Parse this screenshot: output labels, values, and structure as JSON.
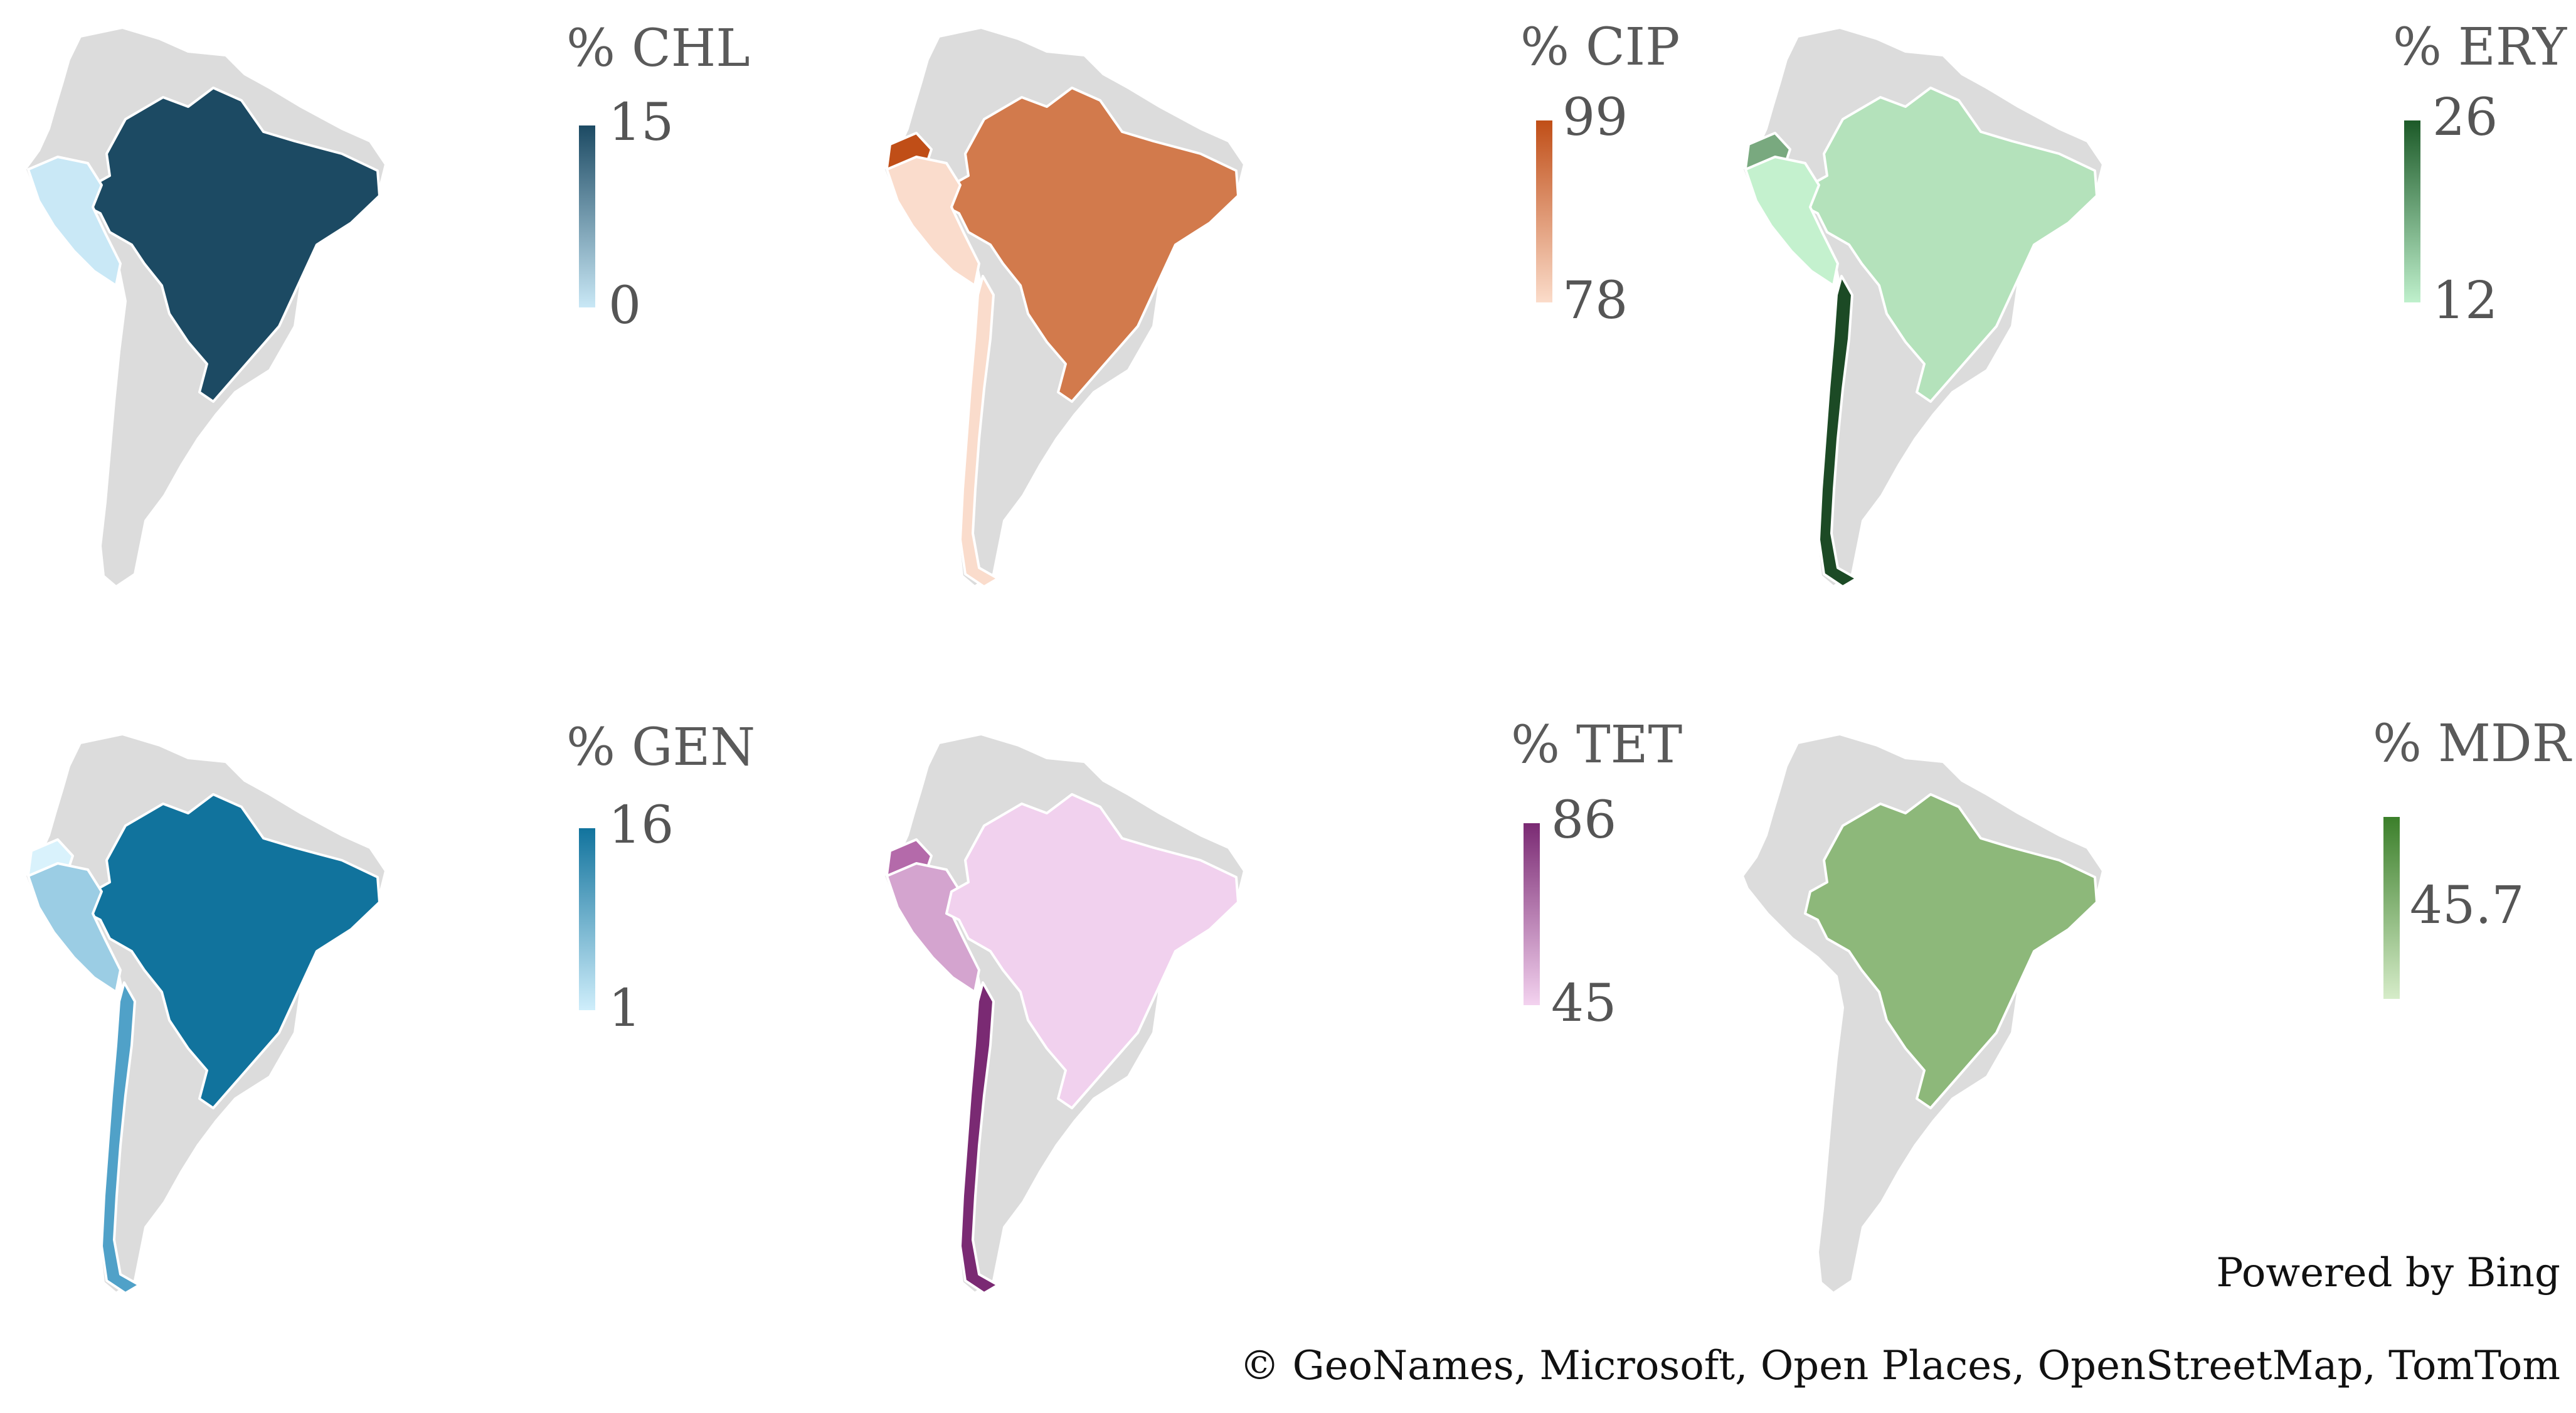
{
  "attribution": {
    "powered_by": "Powered by Bing",
    "copyright": "© GeoNames, Microsoft, Open Places, OpenStreetMap, TomTom"
  },
  "base_color": "#dcdcdc",
  "panels": [
    {
      "id": "chl",
      "title": "% CHL",
      "max": "15",
      "min": "0",
      "ramp": [
        "#1c4a63",
        "#c9e8f6"
      ],
      "fills": {
        "brazil": "#1c4a63",
        "peru": "#c9e8f6"
      }
    },
    {
      "id": "cip",
      "title": "% CIP",
      "max": "99",
      "min": "78",
      "ramp": [
        "#c04e17",
        "#fbdcca"
      ],
      "fills": {
        "ecuador": "#c04e17",
        "brazil": "#d27a4c",
        "peru": "#fadccc",
        "chile": "#fadccc"
      }
    },
    {
      "id": "ery",
      "title": "% ERY",
      "max": "26",
      "min": "12",
      "ramp": [
        "#1c5a28",
        "#bff0cc"
      ],
      "fills": {
        "ecuador": "#79a97f",
        "brazil": "#b4e2bb",
        "peru": "#c4f1ce",
        "chile": "#1c4a25"
      }
    },
    {
      "id": "gen",
      "title": "% GEN",
      "max": "16",
      "min": "1",
      "ramp": [
        "#11739d",
        "#cfeefb"
      ],
      "fills": {
        "brazil": "#11739d",
        "ecuador": "#d9f2fc",
        "peru": "#9bcde4",
        "chile": "#50a1c8"
      }
    },
    {
      "id": "tet",
      "title": "% TET",
      "max": "86",
      "min": "45",
      "ramp": [
        "#7a2a73",
        "#f3d2ef"
      ],
      "fills": {
        "ecuador": "#b46aaa",
        "peru": "#d4a4cf",
        "brazil": "#f1d1ee",
        "chile": "#7a2a73"
      }
    },
    {
      "id": "mdr",
      "title": "% MDR",
      "mid": "45.7",
      "ramp": [
        "#3b7f2a",
        "#d6ecc9"
      ],
      "fills": {
        "brazil": "#8db87a"
      }
    }
  ]
}
